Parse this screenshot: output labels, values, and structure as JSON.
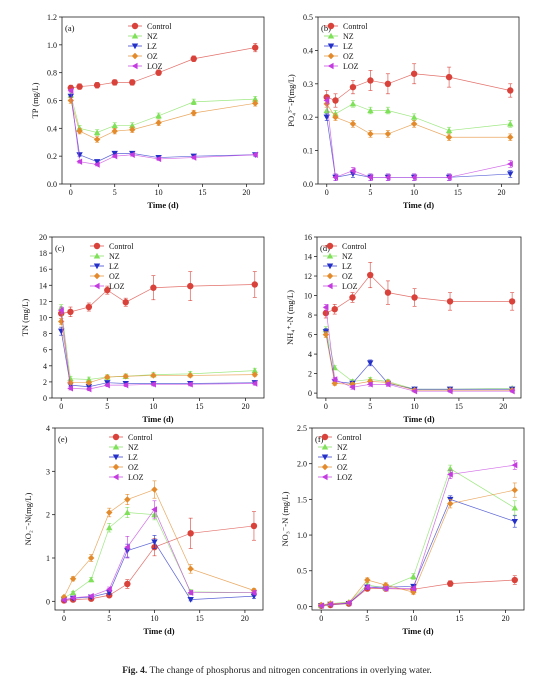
{
  "caption": {
    "fig_no": "Fig. 4.",
    "text": "The change of phosphorus and nitrogen concentrations in overlying water."
  },
  "legend_names": [
    "Control",
    "NZ",
    "LZ",
    "OZ",
    "LOZ"
  ],
  "series_style": {
    "Control": {
      "color": "#d9423a",
      "marker": "circle"
    },
    "NZ": {
      "color": "#7fe05a",
      "marker": "triangle-up"
    },
    "LZ": {
      "color": "#2430c8",
      "marker": "triangle-down"
    },
    "OZ": {
      "color": "#e38b2c",
      "marker": "diamond"
    },
    "LOZ": {
      "color": "#c43ce0",
      "marker": "triangle-left"
    }
  },
  "chart_data": [
    {
      "panel": "(a)",
      "type": "line",
      "xlabel": "Time (d)",
      "ylabel": "TP (mg/L)",
      "xlim": [
        -1,
        22
      ],
      "ylim": [
        0,
        1.2
      ],
      "xticks": [
        0,
        5,
        10,
        15,
        20
      ],
      "yticks": [
        0.0,
        0.2,
        0.4,
        0.6,
        0.8,
        1.0,
        1.2
      ],
      "ydec": 1,
      "x": [
        0,
        1,
        3,
        5,
        7,
        10,
        14,
        21
      ],
      "series": [
        {
          "name": "Control",
          "values": [
            0.69,
            0.7,
            0.71,
            0.73,
            0.73,
            0.8,
            0.9,
            0.98
          ],
          "err": [
            0.02,
            0.02,
            0.02,
            0.02,
            0.02,
            0.02,
            0.02,
            0.03
          ]
        },
        {
          "name": "NZ",
          "values": [
            0.64,
            0.4,
            0.37,
            0.42,
            0.42,
            0.49,
            0.59,
            0.61
          ],
          "err": [
            0.02,
            0.02,
            0.02,
            0.02,
            0.02,
            0.02,
            0.02,
            0.02
          ]
        },
        {
          "name": "LZ",
          "values": [
            0.63,
            0.21,
            0.16,
            0.22,
            0.22,
            0.19,
            0.2,
            0.21
          ],
          "err": [
            0.01,
            0.01,
            0.01,
            0.01,
            0.01,
            0.01,
            0.01,
            0.01
          ]
        },
        {
          "name": "OZ",
          "values": [
            0.6,
            0.38,
            0.32,
            0.38,
            0.39,
            0.44,
            0.51,
            0.58
          ],
          "err": [
            0.02,
            0.02,
            0.02,
            0.02,
            0.02,
            0.02,
            0.02,
            0.02
          ]
        },
        {
          "name": "LOZ",
          "values": [
            0.67,
            0.16,
            0.14,
            0.2,
            0.21,
            0.18,
            0.19,
            0.21
          ],
          "err": [
            0.01,
            0.01,
            0.01,
            0.01,
            0.01,
            0.01,
            0.01,
            0.01
          ]
        }
      ]
    },
    {
      "panel": "(b)",
      "type": "line",
      "xlabel": "Time (d)",
      "ylabel": "PO₄³⁻-P(mg/L)",
      "xlim": [
        -1,
        22
      ],
      "ylim": [
        0,
        0.5
      ],
      "xticks": [
        0,
        5,
        10,
        15,
        20
      ],
      "yticks": [
        0.0,
        0.1,
        0.2,
        0.3,
        0.4,
        0.5
      ],
      "ydec": 1,
      "x": [
        0,
        1,
        3,
        5,
        7,
        10,
        14,
        21
      ],
      "series": [
        {
          "name": "Control",
          "values": [
            0.26,
            0.25,
            0.29,
            0.31,
            0.3,
            0.33,
            0.32,
            0.28
          ],
          "err": [
            0.02,
            0.02,
            0.02,
            0.03,
            0.03,
            0.03,
            0.03,
            0.02
          ]
        },
        {
          "name": "NZ",
          "values": [
            0.22,
            0.21,
            0.24,
            0.22,
            0.22,
            0.2,
            0.16,
            0.18
          ],
          "err": [
            0.01,
            0.01,
            0.01,
            0.01,
            0.01,
            0.01,
            0.01,
            0.01
          ]
        },
        {
          "name": "LZ",
          "values": [
            0.2,
            0.02,
            0.03,
            0.02,
            0.02,
            0.02,
            0.02,
            0.03
          ],
          "err": [
            0.01,
            0.01,
            0.01,
            0.01,
            0.01,
            0.01,
            0.01,
            0.01
          ]
        },
        {
          "name": "OZ",
          "values": [
            0.24,
            0.2,
            0.18,
            0.15,
            0.15,
            0.18,
            0.14,
            0.14
          ],
          "err": [
            0.01,
            0.01,
            0.01,
            0.01,
            0.01,
            0.01,
            0.01,
            0.01
          ]
        },
        {
          "name": "LOZ",
          "values": [
            0.25,
            0.02,
            0.04,
            0.02,
            0.02,
            0.02,
            0.02,
            0.06
          ],
          "err": [
            0.01,
            0.01,
            0.01,
            0.01,
            0.01,
            0.01,
            0.01,
            0.01
          ]
        }
      ]
    },
    {
      "panel": "(c)",
      "type": "line",
      "xlabel": "Time (d)",
      "ylabel": "TN (mg/L)",
      "xlim": [
        -1,
        22
      ],
      "ylim": [
        0,
        20
      ],
      "xticks": [
        0,
        5,
        10,
        15,
        20
      ],
      "yticks": [
        0,
        2,
        4,
        6,
        8,
        10,
        12,
        14,
        16,
        18,
        20
      ],
      "ydec": 0,
      "x": [
        0,
        1,
        3,
        5,
        7,
        10,
        14,
        21
      ],
      "series": [
        {
          "name": "Control",
          "values": [
            10.5,
            10.7,
            11.3,
            13.4,
            11.9,
            13.7,
            13.9,
            14.1
          ],
          "err": [
            0.6,
            0.6,
            0.5,
            0.5,
            0.5,
            1.5,
            1.8,
            1.6
          ]
        },
        {
          "name": "NZ",
          "values": [
            11.2,
            2.4,
            2.3,
            2.6,
            2.7,
            2.9,
            3.0,
            3.4
          ],
          "err": [
            0.4,
            0.3,
            0.3,
            0.3,
            0.3,
            0.3,
            0.3,
            0.3
          ]
        },
        {
          "name": "LZ",
          "values": [
            8.3,
            1.6,
            1.4,
            1.9,
            1.8,
            1.8,
            1.8,
            1.9
          ],
          "err": [
            0.5,
            0.2,
            0.2,
            0.2,
            0.2,
            0.2,
            0.2,
            0.2
          ]
        },
        {
          "name": "OZ",
          "values": [
            9.5,
            1.9,
            1.9,
            2.6,
            2.7,
            2.8,
            2.8,
            2.9
          ],
          "err": [
            0.4,
            0.2,
            0.2,
            0.2,
            0.2,
            0.2,
            0.2,
            0.2
          ]
        },
        {
          "name": "LOZ",
          "values": [
            10.9,
            1.2,
            1.1,
            1.6,
            1.6,
            1.7,
            1.7,
            1.8
          ],
          "err": [
            0.4,
            0.2,
            0.2,
            0.2,
            0.2,
            0.2,
            0.2,
            0.2
          ]
        }
      ]
    },
    {
      "panel": "(d)",
      "type": "line",
      "xlabel": "Time (d)",
      "ylabel": "NH₄⁺-N (mg/L)",
      "xlim": [
        -1,
        22
      ],
      "ylim": [
        -0.5,
        16
      ],
      "xticks": [
        0,
        5,
        10,
        15,
        20
      ],
      "yticks": [
        0,
        2,
        4,
        6,
        8,
        10,
        12,
        14,
        16
      ],
      "ydec": 0,
      "x": [
        0,
        1,
        3,
        5,
        7,
        10,
        14,
        21
      ],
      "series": [
        {
          "name": "Control",
          "values": [
            8.2,
            8.6,
            9.8,
            12.1,
            10.3,
            9.8,
            9.4,
            9.4
          ],
          "err": [
            0.5,
            0.5,
            0.5,
            1.3,
            1.2,
            0.9,
            0.9,
            0.9
          ]
        },
        {
          "name": "NZ",
          "values": [
            6.5,
            2.6,
            1.2,
            1.4,
            1.2,
            0.4,
            0.4,
            0.5
          ],
          "err": [
            0.3,
            0.2,
            0.2,
            0.2,
            0.2,
            0.1,
            0.1,
            0.1
          ]
        },
        {
          "name": "LZ",
          "values": [
            6.3,
            1.2,
            1.0,
            3.1,
            1.0,
            0.4,
            0.4,
            0.4
          ],
          "err": [
            0.3,
            0.2,
            0.2,
            0.3,
            0.2,
            0.1,
            0.1,
            0.1
          ]
        },
        {
          "name": "OZ",
          "values": [
            6.0,
            1.0,
            0.9,
            1.2,
            1.1,
            0.3,
            0.3,
            0.3
          ],
          "err": [
            0.3,
            0.2,
            0.2,
            0.2,
            0.2,
            0.1,
            0.1,
            0.1
          ]
        },
        {
          "name": "LOZ",
          "values": [
            8.8,
            1.4,
            0.6,
            0.9,
            0.9,
            0.2,
            0.2,
            0.2
          ],
          "err": [
            0.3,
            0.2,
            0.2,
            0.2,
            0.2,
            0.1,
            0.1,
            0.1
          ]
        }
      ]
    },
    {
      "panel": "(e)",
      "type": "line",
      "xlabel": "Time (d)",
      "ylabel": "NO₂⁻-N(mg/L)",
      "xlim": [
        -1,
        22
      ],
      "ylim": [
        -0.2,
        4
      ],
      "xticks": [
        0,
        5,
        10,
        15,
        20
      ],
      "yticks": [
        0,
        1,
        2,
        3,
        4
      ],
      "ydec": 0,
      "x": [
        0,
        1,
        3,
        5,
        7,
        10,
        14,
        21
      ],
      "series": [
        {
          "name": "Control",
          "values": [
            0.02,
            0.04,
            0.06,
            0.14,
            0.4,
            1.25,
            1.57,
            1.74
          ],
          "err": [
            0.02,
            0.02,
            0.03,
            0.05,
            0.1,
            0.2,
            0.35,
            0.33
          ]
        },
        {
          "name": "NZ",
          "values": [
            0.08,
            0.2,
            0.5,
            1.7,
            2.05,
            2.0,
            0.22,
            0.2
          ],
          "err": [
            0.02,
            0.03,
            0.05,
            0.1,
            0.12,
            0.12,
            0.05,
            0.05
          ]
        },
        {
          "name": "LZ",
          "values": [
            0.04,
            0.07,
            0.1,
            0.2,
            1.17,
            1.37,
            0.04,
            0.12
          ],
          "err": [
            0.02,
            0.02,
            0.03,
            0.04,
            0.15,
            0.15,
            0.03,
            0.05
          ]
        },
        {
          "name": "OZ",
          "values": [
            0.1,
            0.52,
            1.0,
            2.05,
            2.35,
            2.58,
            0.75,
            0.25
          ],
          "err": [
            0.03,
            0.05,
            0.08,
            0.1,
            0.12,
            0.2,
            0.1,
            0.05
          ]
        },
        {
          "name": "LOZ",
          "values": [
            0.03,
            0.08,
            0.12,
            0.28,
            1.25,
            2.12,
            0.2,
            0.2
          ],
          "err": [
            0.02,
            0.02,
            0.03,
            0.05,
            0.25,
            0.2,
            0.05,
            0.05
          ]
        }
      ]
    },
    {
      "panel": "(f)",
      "type": "line",
      "xlabel": "Time (d)",
      "ylabel": "NO₃⁻-N (mg/L)",
      "xlim": [
        -1,
        22
      ],
      "ylim": [
        -0.05,
        2.5
      ],
      "xticks": [
        0,
        5,
        10,
        15,
        20
      ],
      "yticks": [
        0.0,
        0.5,
        1.0,
        1.5,
        2.0,
        2.5
      ],
      "ydec": 1,
      "x": [
        0,
        1,
        3,
        5,
        7,
        10,
        14,
        21
      ],
      "series": [
        {
          "name": "Control",
          "values": [
            0.01,
            0.02,
            0.04,
            0.25,
            0.25,
            0.24,
            0.32,
            0.37
          ],
          "err": [
            0.01,
            0.01,
            0.01,
            0.02,
            0.02,
            0.03,
            0.04,
            0.06
          ]
        },
        {
          "name": "NZ",
          "values": [
            0.02,
            0.04,
            0.06,
            0.3,
            0.26,
            0.42,
            1.93,
            1.38
          ],
          "err": [
            0.01,
            0.01,
            0.01,
            0.03,
            0.03,
            0.04,
            0.05,
            0.1
          ]
        },
        {
          "name": "LZ",
          "values": [
            0.01,
            0.03,
            0.04,
            0.27,
            0.27,
            0.28,
            1.5,
            1.19
          ],
          "err": [
            0.01,
            0.01,
            0.01,
            0.03,
            0.03,
            0.03,
            0.05,
            0.08
          ]
        },
        {
          "name": "OZ",
          "values": [
            0.02,
            0.04,
            0.05,
            0.37,
            0.3,
            0.2,
            1.44,
            1.63
          ],
          "err": [
            0.01,
            0.01,
            0.01,
            0.03,
            0.03,
            0.03,
            0.06,
            0.1
          ]
        },
        {
          "name": "LOZ",
          "values": [
            0.01,
            0.03,
            0.05,
            0.27,
            0.25,
            0.25,
            1.85,
            1.98
          ],
          "err": [
            0.01,
            0.01,
            0.01,
            0.03,
            0.03,
            0.03,
            0.06,
            0.06
          ]
        }
      ]
    }
  ]
}
